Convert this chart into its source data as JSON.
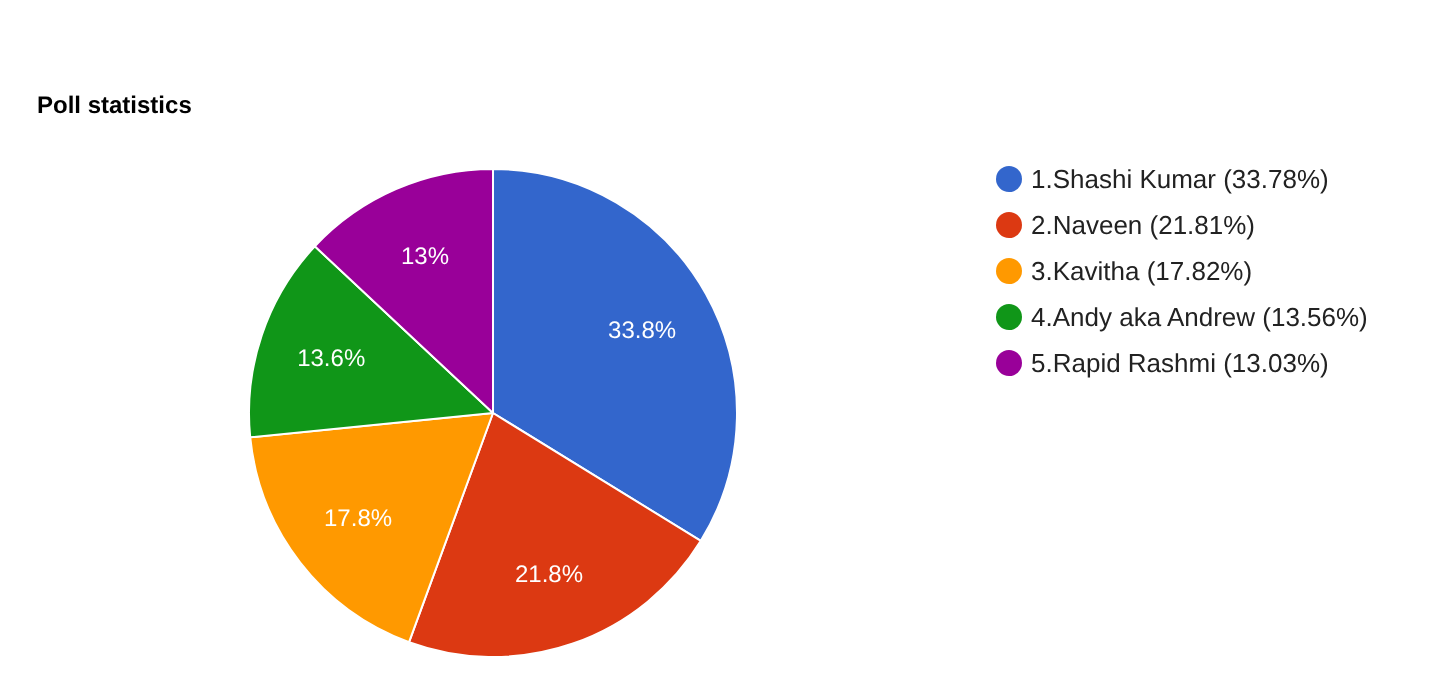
{
  "chart_data": {
    "type": "pie",
    "title": "Poll statistics",
    "categories": [
      "1.Shashi Kumar (33.78%)",
      "2.Naveen (21.81%)",
      "3.Kavitha (17.82%)",
      "4.Andy aka Andrew (13.56%)",
      "5.Rapid Rashmi (13.03%)"
    ],
    "values": [
      33.78,
      21.81,
      17.82,
      13.56,
      13.03
    ],
    "colors": [
      "#3366cc",
      "#dc3912",
      "#ff9900",
      "#109618",
      "#990099"
    ],
    "value_labels": [
      "33.8%",
      "21.8%",
      "17.8%",
      "13.6%",
      "13%"
    ],
    "legend": "right"
  }
}
